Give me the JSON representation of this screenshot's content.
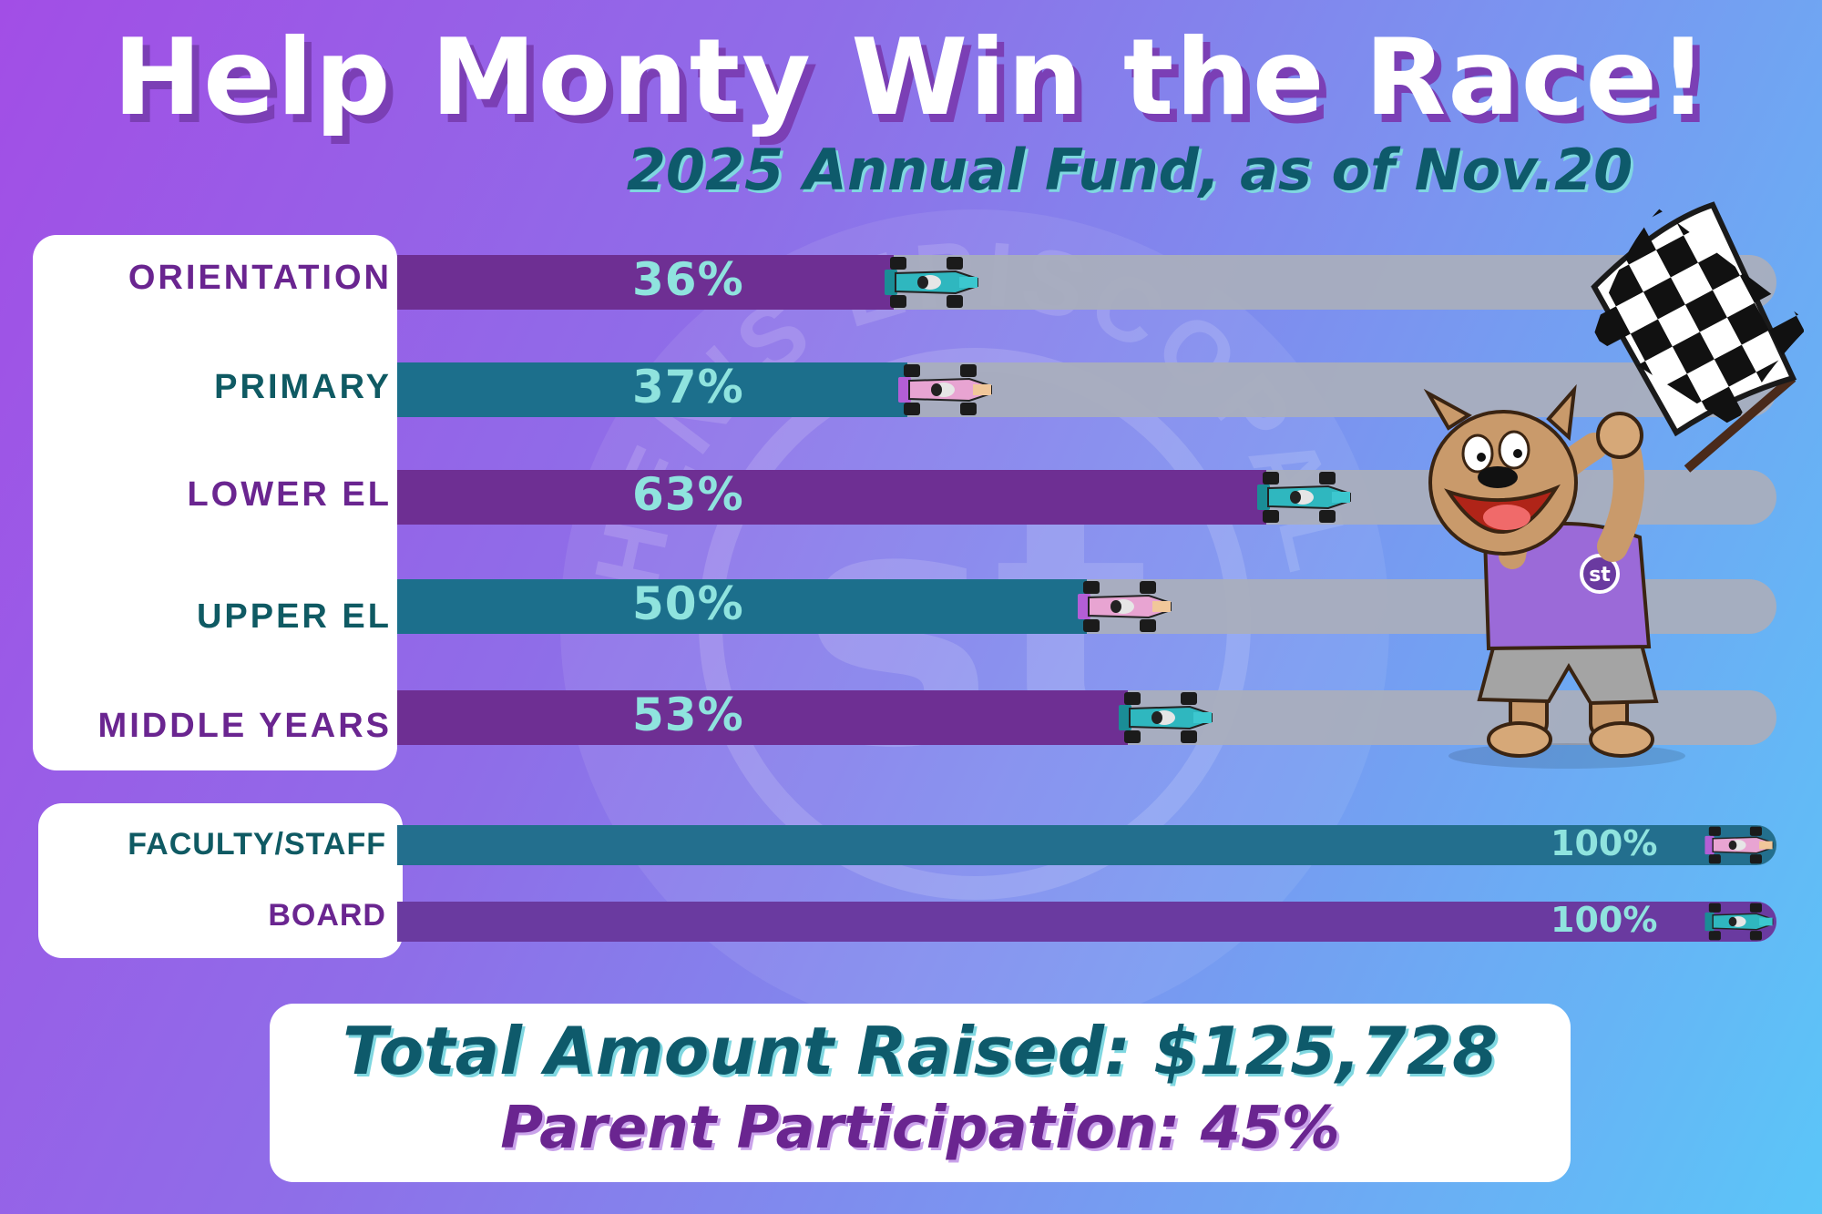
{
  "header": {
    "title": "Help Monty Win the Race!",
    "subtitle": "2025 Annual Fund, as of Nov.20"
  },
  "watermark": {
    "arc_text": "ST. STEPHEN'S EPISCOPAL SCHOOL",
    "monogram": "st"
  },
  "chart_data": {
    "type": "bar",
    "orientation": "horizontal",
    "ylim": [
      0,
      100
    ],
    "unit": "%",
    "categories": [
      "ORIENTATION",
      "PRIMARY",
      "LOWER EL",
      "UPPER EL",
      "MIDDLE YEARS",
      "FACULTY/STAFF",
      "BOARD"
    ],
    "values": [
      36,
      37,
      63,
      50,
      53,
      100,
      100
    ],
    "value_labels": [
      "36%",
      "37%",
      "63%",
      "50%",
      "53%",
      "100%",
      "100%"
    ],
    "bar_colors": [
      "#6e2f93",
      "#1c6f8c",
      "#6e2f93",
      "#1c6f8c",
      "#6e2f93",
      "#236f8e",
      "#6a3aa0"
    ],
    "label_colors": [
      "#6a2590",
      "#0f5a63",
      "#6a2590",
      "#0f5a63",
      "#6a2590",
      "#0f5a63",
      "#6a2590"
    ],
    "car_colors": [
      "teal",
      "pink",
      "teal",
      "pink",
      "teal",
      "pink",
      "teal"
    ],
    "track_color": "#a9aebd"
  },
  "mascot": {
    "name": "Monty",
    "shirt_monogram": "st"
  },
  "footer": {
    "total_raised": "Total Amount Raised:  $125,728",
    "parent_participation": "Parent Participation:  45%"
  },
  "colors": {
    "purple": "#6a2590",
    "teal": "#0e5a6b",
    "pct_text": "#8fe3de"
  }
}
